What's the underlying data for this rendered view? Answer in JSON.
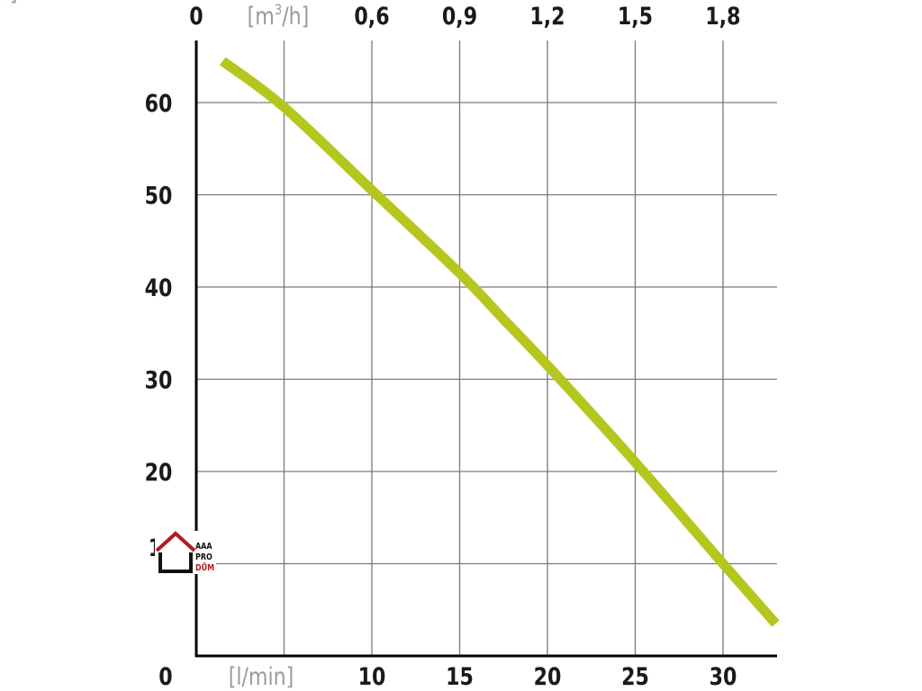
{
  "chart_data": {
    "type": "line",
    "x_axis_bottom": {
      "ticks": [
        "0",
        "10",
        "15",
        "20",
        "25",
        "30"
      ],
      "tick_values": [
        0,
        10,
        15,
        20,
        25,
        30
      ],
      "unit": "[l/min]",
      "range": [
        0,
        33
      ]
    },
    "x_axis_top": {
      "ticks": [
        "0",
        "0,6",
        "0,9",
        "1,2",
        "1,5",
        "1,8"
      ],
      "tick_values": [
        0,
        10,
        15,
        20,
        25,
        30
      ],
      "unit_prefix": "[m",
      "unit_sup": "3",
      "unit_suffix": "/h]"
    },
    "y_axis": {
      "ticks": [
        "0",
        "20",
        "30",
        "40",
        "50",
        "60"
      ],
      "tick_values": [
        0,
        20,
        30,
        40,
        50,
        60
      ],
      "unit": "[m]",
      "range": [
        0,
        66
      ]
    },
    "gridlines_x": [
      5,
      10,
      15,
      20,
      25,
      30
    ],
    "gridlines_y": [
      10,
      20,
      30,
      40,
      50,
      60
    ],
    "series": [
      {
        "color": "#b5c61e",
        "x": [
          1.5,
          5,
          10,
          15,
          17.5,
          20,
          25,
          30,
          33
        ],
        "y": [
          64.5,
          59.5,
          50.5,
          41.5,
          36.5,
          31.5,
          21,
          10,
          3.5
        ]
      }
    ],
    "grid": true
  },
  "logo": {
    "line1": "AAA",
    "line2": "PRO",
    "line3": "DŮM",
    "partial_tick": "1"
  }
}
